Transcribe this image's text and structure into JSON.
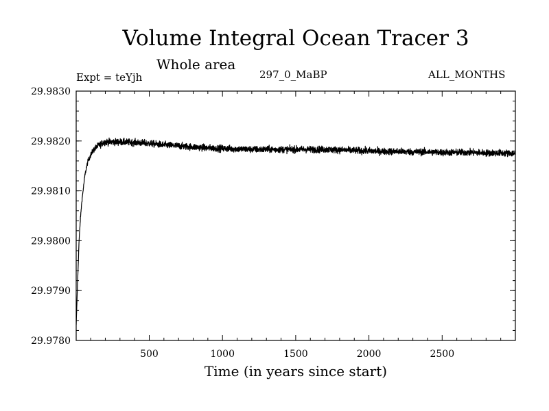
{
  "chart_data": {
    "type": "line",
    "title": "Volume Integral Ocean Tracer 3",
    "subtitle": "Whole area",
    "annotations": {
      "experiment": "Expt = teYjh",
      "run": "297_0_MaBP",
      "period": "ALL_MONTHS"
    },
    "xlabel": "Time (in years since start)",
    "ylabel": "",
    "xlim": [
      1,
      3000
    ],
    "ylim": [
      29.978,
      29.983
    ],
    "x_ticks": [
      500,
      1000,
      1500,
      2000,
      2500
    ],
    "x_tick_labels": [
      "500",
      "1000",
      "1500",
      "2000",
      "2500"
    ],
    "y_ticks": [
      29.978,
      29.979,
      29.98,
      29.981,
      29.982,
      29.983
    ],
    "y_tick_labels": [
      "29.9780",
      "29.9790",
      "29.9800",
      "29.9810",
      "29.9820",
      "29.9830"
    ],
    "grid": false,
    "series": [
      {
        "x": [
          1,
          10,
          20,
          30,
          40,
          50,
          60,
          70,
          80,
          100,
          120,
          140,
          160,
          180,
          200,
          250,
          300,
          400,
          500,
          600,
          700,
          800,
          900,
          1000,
          1100,
          1200,
          1300,
          1400,
          1500,
          1600,
          1700,
          1800,
          1900,
          2000,
          2100,
          2200,
          2300,
          2400,
          2500,
          2600,
          2700,
          2800,
          2900,
          3000
        ],
        "values": [
          29.9783,
          29.9791,
          29.97995,
          29.98045,
          29.9808,
          29.98105,
          29.9813,
          29.98145,
          29.98158,
          29.98172,
          29.98182,
          29.98188,
          29.98192,
          29.98196,
          29.98198,
          29.98198,
          29.98198,
          29.98197,
          29.98195,
          29.98192,
          29.9819,
          29.98188,
          29.98186,
          29.98185,
          29.98184,
          29.98183,
          29.98183,
          29.98183,
          29.98183,
          29.98183,
          29.98183,
          29.98182,
          29.98181,
          29.9818,
          29.98179,
          29.98179,
          29.98178,
          29.98178,
          29.98177,
          29.98177,
          29.98177,
          29.98176,
          29.98176,
          29.98175
        ],
        "annual_noise_amplitude": 0.00012,
        "color": "#000000"
      }
    ]
  }
}
